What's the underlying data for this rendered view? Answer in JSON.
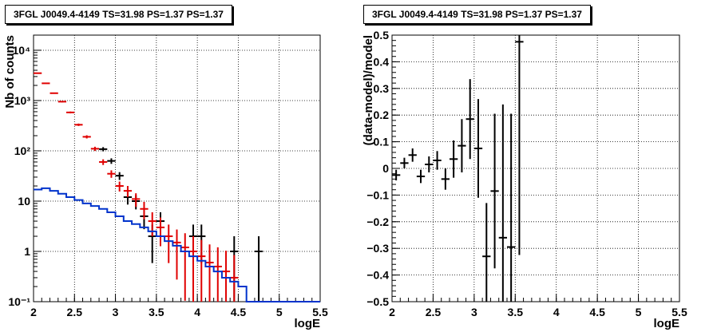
{
  "colors": {
    "data": "#000000",
    "model": "#e00000",
    "background": "#0033cc",
    "grid": "#000000"
  },
  "chart_data": [
    {
      "type": "line",
      "title": "3FGL J0049.4-4149 TS=31.98 PS=1.37 PS=1.37",
      "xlabel": "logE",
      "ylabel": "Nb of counts",
      "xlim": [
        2,
        5.5
      ],
      "ylim": [
        0.1,
        20000
      ],
      "log_y": true,
      "grid": true,
      "x_ticks": [
        "2",
        "2.5",
        "3",
        "3.5",
        "4",
        "4.5",
        "5",
        "5.5"
      ],
      "y_ticks": [
        "10⁻¹",
        "1",
        "10",
        "10²",
        "10³",
        "10⁴"
      ],
      "series": [
        {
          "style": "errorbar",
          "color": "#000000",
          "x": [
            2.85,
            2.95,
            3.05,
            3.15,
            3.25,
            3.35,
            3.45,
            3.55,
            3.95,
            4.05,
            4.45,
            4.75
          ],
          "values": [
            108,
            63,
            32,
            12,
            10,
            5,
            2,
            4,
            2,
            2,
            1,
            1
          ]
        },
        {
          "style": "errorbar",
          "color": "#e00000",
          "x": [
            2.05,
            2.15,
            2.25,
            2.35,
            2.45,
            2.55,
            2.65,
            2.75,
            2.85,
            2.95,
            3.05,
            3.15,
            3.25,
            3.35,
            3.45,
            3.55,
            3.65,
            3.75,
            3.85,
            3.95,
            4.05,
            4.15,
            4.25,
            4.35,
            4.45
          ],
          "values": [
            3500,
            2200,
            1400,
            950,
            580,
            330,
            190,
            110,
            60,
            35,
            20,
            16,
            11,
            7,
            4,
            3,
            2,
            1.5,
            1.2,
            1.0,
            0.8,
            0.6,
            0.5,
            0.4,
            0.3
          ]
        },
        {
          "style": "step",
          "color": "#0033cc",
          "x": [
            2.0,
            2.1,
            2.2,
            2.3,
            2.4,
            2.5,
            2.6,
            2.7,
            2.8,
            2.9,
            3.0,
            3.1,
            3.2,
            3.3,
            3.4,
            3.5,
            3.6,
            3.7,
            3.8,
            3.9,
            4.0,
            4.1,
            4.2,
            4.3,
            4.4,
            4.5,
            4.6,
            5.5
          ],
          "values": [
            17,
            18,
            16,
            14,
            12,
            10.5,
            9,
            8,
            7,
            6,
            5,
            4,
            3.5,
            3,
            2.5,
            2,
            1.6,
            1.3,
            1.0,
            0.8,
            0.65,
            0.5,
            0.4,
            0.3,
            0.25,
            0.2,
            0.1,
            0.1
          ]
        }
      ]
    },
    {
      "type": "scatter",
      "title": "3FGL J0049.4-4149 TS=31.98 PS=1.37 PS=1.37",
      "xlabel": "logE",
      "ylabel": "(data-model)/model",
      "xlim": [
        2,
        5.5
      ],
      "ylim": [
        -0.5,
        0.5
      ],
      "grid": true,
      "x_ticks": [
        "2",
        "2.5",
        "3",
        "3.5",
        "4",
        "4.5",
        "5",
        "5.5"
      ],
      "y_ticks": [
        "−0.5",
        "−0.4",
        "−0.3",
        "−0.2",
        "−0.1",
        "0",
        "0.1",
        "0.2",
        "0.3",
        "0.4",
        "0.5"
      ],
      "series": [
        {
          "style": "errorbar",
          "color": "#000000",
          "x": [
            2.05,
            2.15,
            2.25,
            2.35,
            2.45,
            2.55,
            2.65,
            2.75,
            2.85,
            2.95,
            3.05,
            3.15,
            3.25,
            3.35,
            3.45,
            3.55
          ],
          "values": [
            -0.025,
            0.02,
            0.05,
            -0.03,
            0.015,
            0.03,
            -0.04,
            0.035,
            0.085,
            0.185,
            0.075,
            -0.33,
            -0.085,
            -0.26,
            -0.295,
            0.475
          ],
          "errors": [
            0.02,
            0.02,
            0.025,
            0.025,
            0.03,
            0.035,
            0.04,
            0.07,
            0.1,
            0.15,
            0.185,
            0.2,
            0.29,
            0.5,
            0.5,
            0.8
          ]
        }
      ]
    }
  ]
}
